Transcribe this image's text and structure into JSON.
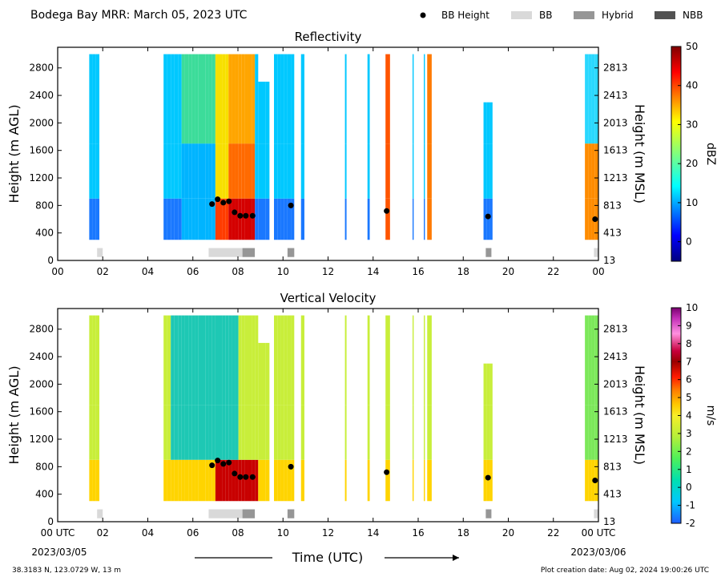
{
  "header": {
    "title": "Bodega Bay MRR:  March 05, 2023 UTC",
    "legend": [
      {
        "marker": "dot",
        "label": "BB Height",
        "color": "#000000"
      },
      {
        "marker": "rect",
        "label": "BB",
        "color": "#d9d9d9"
      },
      {
        "marker": "rect",
        "label": "Hybrid",
        "color": "#969696"
      },
      {
        "marker": "rect",
        "label": "NBB",
        "color": "#525252"
      }
    ]
  },
  "footer": {
    "location": "38.3183 N, 123.0729 W, 13 m",
    "creation": "Plot creation date: Aug 02, 2024 19:00:26 UTC",
    "time_label": "Time (UTC)",
    "start_date": "2023/03/05",
    "end_date": "2023/03/06"
  },
  "chart_data": [
    {
      "type": "heatmap",
      "title": "Reflectivity",
      "ylabel": "Height (m AGL)",
      "y2label": "Height (m MSL)",
      "colorbar_label": "dBZ",
      "colorbar_ticks": [
        "50",
        "40",
        "30",
        "20",
        "10",
        "0"
      ],
      "xlim": [
        0,
        24
      ],
      "ylim": [
        0,
        3100
      ],
      "x_ticks": [
        "00",
        "02",
        "04",
        "06",
        "08",
        "10",
        "12",
        "14",
        "16",
        "18",
        "20",
        "22",
        "00"
      ],
      "y_ticks": [
        "2800",
        "2400",
        "2000",
        "1600",
        "1200",
        "800",
        "400",
        "0"
      ],
      "y2_ticks": [
        "2813",
        "2413",
        "2013",
        "1613",
        "1213",
        "813",
        "413",
        "13"
      ],
      "bb_height": {
        "x": [
          6.85,
          7.1,
          7.35,
          7.6,
          7.85,
          8.1,
          8.35,
          8.65,
          10.35,
          14.6,
          19.1,
          23.85
        ],
        "y": [
          820,
          890,
          840,
          860,
          700,
          650,
          650,
          650,
          800,
          720,
          640,
          600
        ]
      },
      "bb_type": [
        {
          "start": 1.75,
          "end": 2.0,
          "type": "BB"
        },
        {
          "start": 6.7,
          "end": 8.2,
          "type": "BB"
        },
        {
          "start": 8.2,
          "end": 8.75,
          "type": "Hybrid"
        },
        {
          "start": 10.2,
          "end": 10.5,
          "type": "Hybrid"
        },
        {
          "start": 19.0,
          "end": 19.25,
          "type": "Hybrid"
        },
        {
          "start": 23.8,
          "end": 24.0,
          "type": "BB"
        }
      ]
    },
    {
      "type": "heatmap",
      "title": "Vertical Velocity",
      "ylabel": "Height (m AGL)",
      "y2label": "Height (m MSL)",
      "colorbar_label": "m/s",
      "colorbar_ticks": [
        "10",
        "9",
        "8",
        "7",
        "6",
        "5",
        "4",
        "3",
        "2",
        "1",
        "0",
        "-1",
        "-2"
      ],
      "xlim": [
        0,
        24
      ],
      "ylim": [
        0,
        3100
      ],
      "x_ticks": [
        "00 UTC",
        "02",
        "04",
        "06",
        "08",
        "10",
        "12",
        "14",
        "16",
        "18",
        "20",
        "22",
        "00 UTC"
      ],
      "y_ticks": [
        "2800",
        "2400",
        "2000",
        "1600",
        "1200",
        "800",
        "400",
        "0"
      ],
      "y2_ticks": [
        "2813",
        "2413",
        "2013",
        "1613",
        "1213",
        "813",
        "413",
        "13"
      ],
      "bb_height": {
        "x": [
          6.85,
          7.1,
          7.35,
          7.6,
          7.85,
          8.1,
          8.35,
          8.65,
          10.35,
          14.6,
          19.1,
          23.85
        ],
        "y": [
          820,
          890,
          840,
          860,
          700,
          650,
          650,
          650,
          800,
          720,
          640,
          600
        ]
      },
      "bb_type": [
        {
          "start": 1.75,
          "end": 2.0,
          "type": "BB"
        },
        {
          "start": 6.7,
          "end": 8.2,
          "type": "BB"
        },
        {
          "start": 8.2,
          "end": 8.75,
          "type": "Hybrid"
        },
        {
          "start": 10.2,
          "end": 10.5,
          "type": "Hybrid"
        },
        {
          "start": 19.0,
          "end": 19.25,
          "type": "Hybrid"
        },
        {
          "start": 23.8,
          "end": 24.0,
          "type": "BB"
        }
      ]
    }
  ]
}
